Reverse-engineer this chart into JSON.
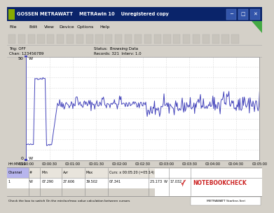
{
  "title": "GOSSEN METRAWATT    METRAwin 10    Unregistered copy",
  "status_text": "Status:  Browsing Data",
  "records_text": "Records: 321  Interv: 1.0",
  "trig_text": "Trig: OFF",
  "chan_text": "Chan: 123456789",
  "y_max": 50,
  "y_min": 0,
  "y_label_top": "W",
  "y_label_bottom": "W",
  "time_labels": [
    "00:00:00",
    "00:00:30",
    "00:01:00",
    "00:01:30",
    "00:02:00",
    "00:02:30",
    "00:03:00",
    "00:03:30",
    "00:04:00",
    "00:04:30",
    "00:05:00"
  ],
  "hh_mm_ss": "HH:MM:SS",
  "line_color": "#4444bb",
  "bg_color": "#d4d0c8",
  "plot_bg": "#ffffff",
  "grid_color": "#c0c0c0",
  "baseline_watts": 7.29,
  "peak_watts": 39.5,
  "mid_watts": 27.0,
  "low_watts": 25.0,
  "table_channel": "1",
  "table_unit": "W",
  "table_min": "07.290",
  "table_avg": "27.606",
  "table_max": "39.502",
  "table_cur_label": "Curs: x 00:05:20 (=05:14)",
  "table_cur_val": "07.341",
  "table_cur_unit": "25.173  W",
  "table_last": "17.032",
  "notebookcheck_color": "#cc2222",
  "title_bar_color": "#0a246a",
  "window_bg": "#d4d0c8"
}
